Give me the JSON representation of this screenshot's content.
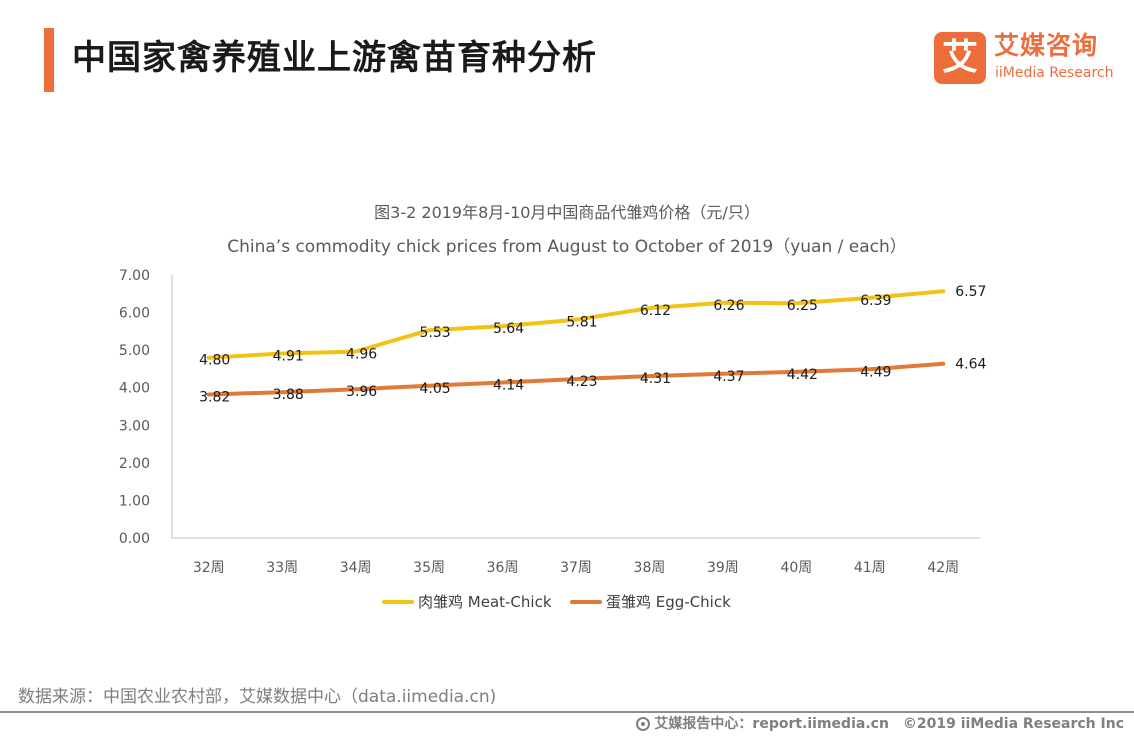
{
  "header": {
    "title": "中国家禽养殖业上游禽苗育种分析"
  },
  "logo": {
    "mark": "艾",
    "cn": "艾媒咨询",
    "en": "iiMedia Research"
  },
  "colors": {
    "accent": "#ed6d3b",
    "meat": "#f2c314",
    "egg": "#e07a37",
    "axis": "#bfbfbf",
    "text": "#404040"
  },
  "chart_data": {
    "type": "line",
    "title": "图3-2 2019年8月-10月中国商品代雏鸡价格（元/只）",
    "subtitle": "China’s commodity chick prices from August to October of 2019（yuan / each）",
    "categories": [
      "32周",
      "33周",
      "34周",
      "35周",
      "36周",
      "37周",
      "38周",
      "39周",
      "40周",
      "41周",
      "42周"
    ],
    "series": [
      {
        "name": "肉雏鸡 Meat-Chick",
        "values": [
          4.8,
          4.91,
          4.96,
          5.53,
          5.64,
          5.81,
          6.12,
          6.26,
          6.25,
          6.39,
          6.57
        ]
      },
      {
        "name": "蛋雏鸡 Egg-Chick",
        "values": [
          3.82,
          3.88,
          3.96,
          4.05,
          4.14,
          4.23,
          4.31,
          4.37,
          4.42,
          4.49,
          4.64
        ]
      }
    ],
    "ylim": [
      0,
      7
    ],
    "yticks": [
      "0.00",
      "1.00",
      "2.00",
      "3.00",
      "4.00",
      "5.00",
      "6.00",
      "7.00"
    ],
    "grid": false,
    "legend": "bottom"
  },
  "footer": {
    "source": "数据来源：中国农业农村部，艾媒数据中心（data.iimedia.cn)",
    "report": "艾媒报告中心：report.iimedia.cn",
    "copyright": "©2019  iiMedia Research  Inc"
  }
}
